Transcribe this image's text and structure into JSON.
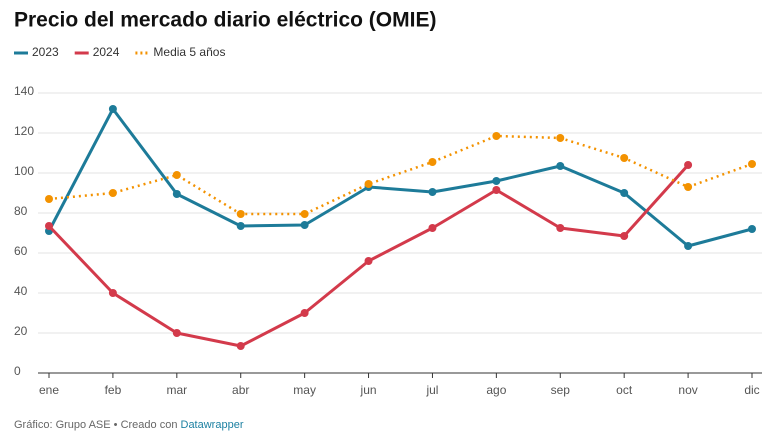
{
  "chart_data": {
    "type": "line",
    "title": "Precio del mercado diario eléctrico (OMIE)",
    "categories": [
      "ene",
      "feb",
      "mar",
      "abr",
      "may",
      "jun",
      "jul",
      "ago",
      "sep",
      "oct",
      "nov",
      "dic"
    ],
    "series": [
      {
        "name": "2023",
        "color": "#1d7b99",
        "values": [
          71,
          132,
          89.5,
          73.5,
          74,
          93,
          90.5,
          96,
          103.5,
          90,
          63.5,
          72
        ]
      },
      {
        "name": "2024",
        "color": "#d33a4b",
        "values": [
          73.5,
          40,
          20,
          13.5,
          30,
          56,
          72.5,
          91.5,
          72.5,
          68.5,
          104,
          null
        ]
      },
      {
        "name": "Media 5 años",
        "color": "#f39200",
        "dashed": true,
        "values": [
          87,
          90,
          99,
          79.5,
          79.5,
          94.5,
          105.5,
          118.5,
          117.5,
          107.5,
          93,
          104.5
        ]
      }
    ],
    "ylim": [
      0,
      140
    ],
    "yticks": [
      0,
      20,
      40,
      60,
      80,
      100,
      120,
      140
    ],
    "grid": true,
    "footer": {
      "source": "Gráfico: Grupo ASE • Creado con",
      "link": "Datawrapper"
    }
  }
}
